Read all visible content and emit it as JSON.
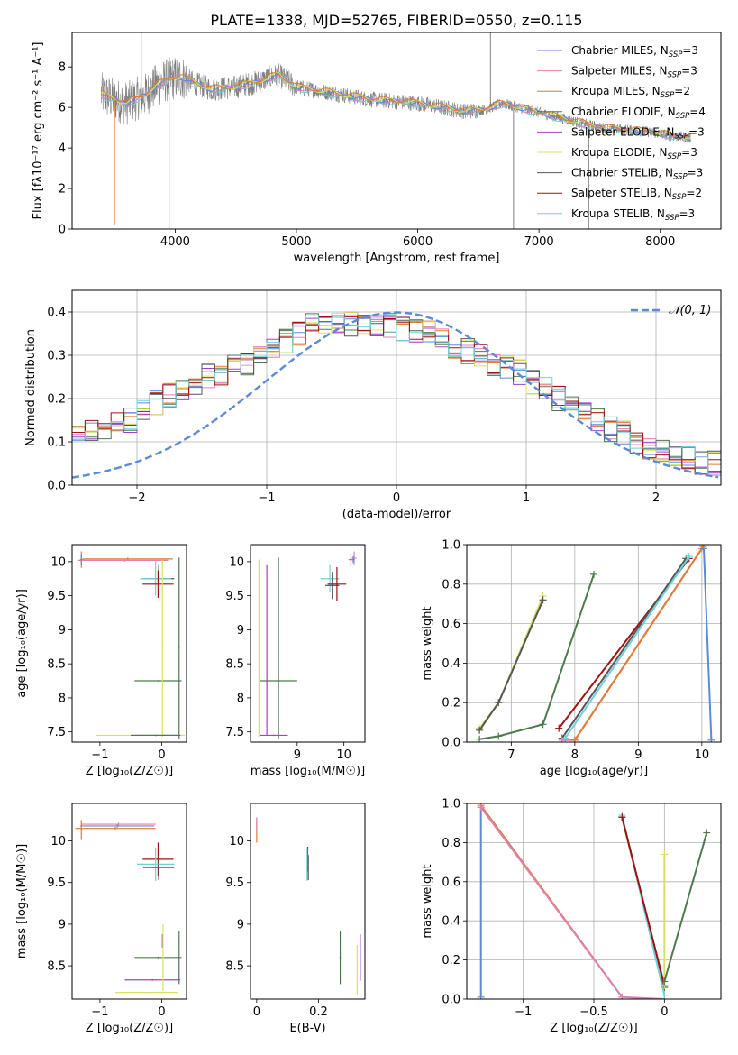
{
  "title": "PLATE=1338, MJD=52765, FIBERID=0550, z=0.115",
  "colors": {
    "ChabrierMILES": "#5b8bd8",
    "SalpeterMILES": "#e07fb5",
    "KroupaMILES": "#e07a35",
    "ChabrierELODIE": "#4d7a4d",
    "SalpeterELODIE": "#a040d0",
    "KroupaELODIE": "#d8e060",
    "ChabrierSTELIB": "#555555",
    "SalpeterSTELIB": "#a01010",
    "KroupaSTELIB": "#70d0e0",
    "data": "#808080",
    "normal": "#5b8bd8"
  },
  "legend1": [
    {
      "label": "Chabrier MILES, N",
      "sub": "SSP",
      "tail": "=3",
      "key": "ChabrierMILES"
    },
    {
      "label": "Salpeter MILES, N",
      "sub": "SSP",
      "tail": "=3",
      "key": "SalpeterMILES"
    },
    {
      "label": "Kroupa MILES, N",
      "sub": "SSP",
      "tail": "=2",
      "key": "KroupaMILES"
    },
    {
      "label": "Chabrier ELODIE, N",
      "sub": "SSP",
      "tail": "=4",
      "key": "ChabrierELODIE"
    },
    {
      "label": "Salpeter ELODIE, N",
      "sub": "SSP",
      "tail": "=3",
      "key": "SalpeterELODIE"
    },
    {
      "label": "Kroupa ELODIE, N",
      "sub": "SSP",
      "tail": "=3",
      "key": "KroupaELODIE"
    },
    {
      "label": "Chabrier STELIB, N",
      "sub": "SSP",
      "tail": "=3",
      "key": "ChabrierSTELIB"
    },
    {
      "label": "Salpeter STELIB, N",
      "sub": "SSP",
      "tail": "=2",
      "key": "SalpeterSTELIB"
    },
    {
      "label": "Kroupa STELIB, N",
      "sub": "SSP",
      "tail": "=3",
      "key": "KroupaSTELIB"
    }
  ],
  "legend2": {
    "label": "𝒩(0, 1)"
  },
  "chart_data": [
    {
      "id": "spectrum",
      "type": "line",
      "xlabel": "wavelength [Angstrom, rest frame]",
      "ylabel": "Flux [fλ10⁻¹⁷ erg cm⁻² s⁻¹ A⁻¹]",
      "xlim": [
        3150,
        8500
      ],
      "ylim": [
        0,
        9.7
      ],
      "xticks": [
        4000,
        5000,
        6000,
        7000,
        8000
      ],
      "yticks": [
        0,
        2,
        4,
        6,
        8
      ],
      "grid": false,
      "model_continuum": {
        "x": [
          3370,
          3450,
          3600,
          3750,
          3850,
          3950,
          4050,
          4150,
          4300,
          4500,
          4700,
          4850,
          5000,
          5200,
          5400,
          5600,
          5800,
          6000,
          6200,
          6400,
          6550,
          6700,
          6900,
          7100,
          7300,
          7500,
          7700,
          7900,
          8100,
          8250
        ],
        "y": [
          6.7,
          6.5,
          6.2,
          6.6,
          7.1,
          7.4,
          7.5,
          7.2,
          6.9,
          7.0,
          7.3,
          7.6,
          7.0,
          6.8,
          6.6,
          6.4,
          6.3,
          6.2,
          6.0,
          5.8,
          5.9,
          6.2,
          5.9,
          5.6,
          5.3,
          5.0,
          4.9,
          4.8,
          4.6,
          4.5
        ]
      }
    },
    {
      "id": "residual-hist",
      "type": "step",
      "xlabel": "(data-model)/error",
      "ylabel": "Normed distribution",
      "xlim": [
        -2.5,
        2.5
      ],
      "ylim": [
        0,
        0.45
      ],
      "xticks": [
        -2,
        -1,
        0,
        1,
        2
      ],
      "yticks": [
        0.0,
        0.1,
        0.2,
        0.3,
        0.4
      ],
      "grid": true,
      "bin_width": 0.1,
      "base_values": [
        0.035,
        0.03,
        0.035,
        0.04,
        0.06,
        0.06,
        0.08,
        0.09,
        0.1,
        0.1,
        0.11,
        0.12,
        0.13,
        0.15,
        0.15,
        0.17,
        0.19,
        0.21,
        0.22,
        0.23,
        0.25,
        0.26,
        0.27,
        0.28,
        0.3,
        0.32,
        0.33,
        0.35,
        0.37,
        0.36,
        0.38,
        0.37,
        0.38,
        0.37,
        0.37,
        0.36,
        0.36,
        0.35,
        0.34,
        0.32,
        0.31,
        0.3,
        0.28,
        0.27,
        0.26,
        0.24,
        0.22,
        0.2,
        0.19,
        0.17,
        0.15,
        0.13,
        0.12,
        0.1,
        0.09,
        0.08,
        0.07,
        0.06,
        0.05,
        0.05,
        0.04,
        0.04,
        0.03,
        0.03,
        0.025,
        0.025,
        0.025,
        0.02,
        0.02,
        0.02
      ]
    },
    {
      "id": "age-vs-Z",
      "type": "errorbar",
      "xlabel": "Z [log₁₀(Z/Z☉)]",
      "ylabel": "age  [log₁₀(age/yr)]",
      "xlim": [
        -1.45,
        0.4
      ],
      "ylim": [
        7.35,
        10.25
      ],
      "xticks": [
        -1,
        0
      ],
      "yticks": [
        7.5,
        8.0,
        8.5,
        9.0,
        9.5,
        10.0
      ],
      "points": [
        {
          "key": "KroupaMILES",
          "x": -1.3,
          "y": 10.03,
          "xerr": 0.02,
          "yerr": 0.12
        },
        {
          "key": "SalpeterMILES",
          "x": -1.3,
          "y": 10.02,
          "xerr": 0.05,
          "yerr": 0.05
        },
        {
          "key": "ChabrierMILES",
          "x": -1.3,
          "y": 10.03,
          "xerr": 0.02,
          "yerr": 0.08
        },
        {
          "key": "KroupaMILES",
          "x": -0.55,
          "y": 10.04,
          "xerr": 0.73,
          "yerr": 0.02
        },
        {
          "key": "SalpeterMILES",
          "x": -0.6,
          "y": 10.02,
          "xerr": 0.7,
          "yerr": 0.02
        },
        {
          "key": "ChabrierSTELIB",
          "x": -0.05,
          "y": 9.75,
          "xerr": 0.25,
          "yerr": 0.2
        },
        {
          "key": "KroupaSTELIB",
          "x": -0.1,
          "y": 9.75,
          "xerr": 0.25,
          "yerr": 0.25
        },
        {
          "key": "SalpeterSTELIB",
          "x": -0.06,
          "y": 9.67,
          "xerr": 0.25,
          "yerr": 0.2
        },
        {
          "key": "ChabrierELODIE",
          "x": 0.28,
          "y": 8.73,
          "xerr": 0.01,
          "yerr": 1.33
        },
        {
          "key": "ChabrierELODIE",
          "x": -0.06,
          "y": 8.25,
          "xerr": 0.38,
          "yerr": 0.01
        },
        {
          "key": "KroupaELODIE",
          "x": 0.01,
          "y": 8.73,
          "xerr": 0.01,
          "yerr": 1.3
        },
        {
          "key": "KroupaELODIE",
          "x": -0.35,
          "y": 7.45,
          "xerr": 0.72,
          "yerr": 0.01
        },
        {
          "key": "SalpeterELODIE",
          "x": -0.1,
          "y": 7.45,
          "xerr": 0.4,
          "yerr": 0.01
        },
        {
          "key": "ChabrierELODIE",
          "x": -0.1,
          "y": 7.45,
          "xerr": 0.4,
          "yerr": 0.01
        }
      ]
    },
    {
      "id": "age-vs-mass",
      "type": "errorbar",
      "xlabel": "mass [log₁₀(M/M☉)]",
      "ylabel": "",
      "xlim": [
        8.0,
        10.45
      ],
      "ylim": [
        7.35,
        10.25
      ],
      "xticks": [
        9,
        10
      ],
      "yticks": [
        7.5,
        8.0,
        8.5,
        9.0,
        9.5,
        10.0
      ],
      "points": [
        {
          "key": "SalpeterMILES",
          "x": 10.22,
          "y": 10.05,
          "xerr": 0.05,
          "yerr": 0.1
        },
        {
          "key": "KroupaMILES",
          "x": 10.15,
          "y": 10.03,
          "xerr": 0.05,
          "yerr": 0.1
        },
        {
          "key": "ChabrierMILES",
          "x": 10.2,
          "y": 10.03,
          "xerr": 0.03,
          "yerr": 0.05
        },
        {
          "key": "KroupaSTELIB",
          "x": 9.7,
          "y": 9.75,
          "xerr": 0.2,
          "yerr": 0.2
        },
        {
          "key": "ChabrierSTELIB",
          "x": 9.75,
          "y": 9.65,
          "xerr": 0.15,
          "yerr": 0.2
        },
        {
          "key": "SalpeterSTELIB",
          "x": 9.85,
          "y": 9.67,
          "xerr": 0.2,
          "yerr": 0.25
        },
        {
          "key": "ChabrierELODIE",
          "x": 8.6,
          "y": 8.73,
          "xerr": 0.01,
          "yerr": 1.33
        },
        {
          "key": "ChabrierELODIE",
          "x": 8.6,
          "y": 8.25,
          "xerr": 0.4,
          "yerr": 0.01
        },
        {
          "key": "SalpeterELODIE",
          "x": 8.35,
          "y": 8.7,
          "xerr": 0.01,
          "yerr": 1.25
        },
        {
          "key": "KroupaELODIE",
          "x": 8.18,
          "y": 8.73,
          "xerr": 0.01,
          "yerr": 1.3
        },
        {
          "key": "SalpeterELODIE",
          "x": 8.5,
          "y": 7.45,
          "xerr": 0.3,
          "yerr": 0.01
        }
      ]
    },
    {
      "id": "weight-vs-age",
      "type": "line",
      "xlabel": "age  [log₁₀(age/yr)]",
      "ylabel": "mass weight",
      "xlim": [
        6.3,
        10.3
      ],
      "ylim": [
        0.0,
        1.0
      ],
      "xticks": [
        7,
        8,
        9,
        10
      ],
      "yticks": [
        0.0,
        0.2,
        0.4,
        0.6,
        0.8,
        1.0
      ],
      "grid": true,
      "series": [
        {
          "key": "KroupaELODIE",
          "x": [
            6.5,
            6.8,
            7.5
          ],
          "y": [
            0.07,
            0.2,
            0.74
          ]
        },
        {
          "key": "ChabrierSTELIB",
          "x": [
            6.5,
            6.8,
            7.5
          ],
          "y": [
            0.06,
            0.2,
            0.72
          ]
        },
        {
          "key": "ChabrierELODIE",
          "x": [
            6.5,
            6.8,
            7.5,
            8.3
          ],
          "y": [
            0.015,
            0.03,
            0.09,
            0.85
          ]
        },
        {
          "key": "SalpeterSTELIB",
          "x": [
            7.75,
            9.8
          ],
          "y": [
            0.07,
            0.93
          ]
        },
        {
          "key": "ChabrierSTELIB",
          "x": [
            7.8,
            9.75
          ],
          "y": [
            0.02,
            0.93
          ]
        },
        {
          "key": "KroupaSTELIB",
          "x": [
            7.85,
            9.8
          ],
          "y": [
            0.02,
            0.94
          ]
        },
        {
          "key": "SalpeterMILES",
          "x": [
            7.8,
            8.0,
            10.0
          ],
          "y": [
            0.01,
            0.01,
            0.98
          ]
        },
        {
          "key": "KroupaMILES",
          "x": [
            8.0,
            10.02
          ],
          "y": [
            0.01,
            0.99
          ]
        },
        {
          "key": "ChabrierMILES",
          "x": [
            10.03,
            10.15
          ],
          "y": [
            0.98,
            0.01
          ]
        }
      ]
    },
    {
      "id": "mass-vs-Z",
      "type": "errorbar",
      "xlabel": "Z [log₁₀(Z/Z☉)]",
      "ylabel": "mass [log₁₀(M/M☉)]",
      "xlim": [
        -1.45,
        0.4
      ],
      "ylim": [
        8.1,
        10.45
      ],
      "xticks": [
        -1,
        0
      ],
      "yticks": [
        8.5,
        9.0,
        9.5,
        10.0
      ],
      "points": [
        {
          "key": "SalpeterMILES",
          "x": -0.7,
          "y": 10.2,
          "xerr": 0.6,
          "yerr": 0.02
        },
        {
          "key": "KroupaMILES",
          "x": -0.75,
          "y": 10.15,
          "xerr": 0.65,
          "yerr": 0.02
        },
        {
          "key": "KroupaMILES",
          "x": -1.3,
          "y": 10.13,
          "xerr": 0.02,
          "yerr": 0.12
        },
        {
          "key": "ChabrierMILES",
          "x": -0.72,
          "y": 10.18,
          "xerr": 0.6,
          "yerr": 0.02
        },
        {
          "key": "SalpeterSTELIB",
          "x": -0.06,
          "y": 9.78,
          "xerr": 0.25,
          "yerr": 0.2
        },
        {
          "key": "KroupaSTELIB",
          "x": -0.1,
          "y": 9.72,
          "xerr": 0.3,
          "yerr": 0.2
        },
        {
          "key": "ChabrierSTELIB",
          "x": -0.05,
          "y": 9.68,
          "xerr": 0.25,
          "yerr": 0.15
        },
        {
          "key": "ChabrierELODIE",
          "x": 0.28,
          "y": 8.6,
          "xerr": 0.01,
          "yerr": 0.32
        },
        {
          "key": "ChabrierELODIE",
          "x": -0.06,
          "y": 8.6,
          "xerr": 0.38,
          "yerr": 0.01
        },
        {
          "key": "SalpeterELODIE",
          "x": 0.01,
          "y": 8.8,
          "xerr": 0.01,
          "yerr": 0.08
        },
        {
          "key": "SalpeterELODIE",
          "x": -0.15,
          "y": 8.33,
          "xerr": 0.45,
          "yerr": 0.01
        },
        {
          "key": "KroupaELODIE",
          "x": -0.25,
          "y": 8.18,
          "xerr": 0.5,
          "yerr": 0.01
        },
        {
          "key": "KroupaELODIE",
          "x": 0.02,
          "y": 8.6,
          "xerr": 0.01,
          "yerr": 0.4
        }
      ]
    },
    {
      "id": "mass-vs-EBV",
      "type": "errorbar",
      "xlabel": "E(B-V)",
      "ylabel": "",
      "xlim": [
        -0.02,
        0.35
      ],
      "ylim": [
        8.1,
        10.45
      ],
      "xticks": [
        0.0,
        0.2
      ],
      "yticks": [
        8.5,
        9.0,
        9.5,
        10.0
      ],
      "points": [
        {
          "key": "KroupaMILES",
          "x": 0.0,
          "y": 10.13,
          "xerr": 0.001,
          "yerr": 0.15
        },
        {
          "key": "SalpeterMILES",
          "x": 0.0,
          "y": 10.2,
          "xerr": 0.001,
          "yerr": 0.08
        },
        {
          "key": "SalpeterSTELIB",
          "x": 0.165,
          "y": 9.78,
          "xerr": 0.002,
          "yerr": 0.15
        },
        {
          "key": "KroupaSTELIB",
          "x": 0.163,
          "y": 9.72,
          "xerr": 0.002,
          "yerr": 0.2
        },
        {
          "key": "ChabrierSTELIB",
          "x": 0.167,
          "y": 9.68,
          "xerr": 0.002,
          "yerr": 0.15
        },
        {
          "key": "ChabrierELODIE",
          "x": 0.27,
          "y": 8.6,
          "xerr": 0.002,
          "yerr": 0.32
        },
        {
          "key": "SalpeterELODIE",
          "x": 0.335,
          "y": 8.6,
          "xerr": 0.002,
          "yerr": 0.28
        },
        {
          "key": "KroupaELODIE",
          "x": 0.325,
          "y": 8.45,
          "xerr": 0.002,
          "yerr": 0.3
        }
      ]
    },
    {
      "id": "weight-vs-Z",
      "type": "line",
      "xlabel": "Z [log₁₀(Z/Z☉)]",
      "ylabel": "mass weight",
      "xlim": [
        -1.4,
        0.4
      ],
      "ylim": [
        0.0,
        1.0
      ],
      "xticks": [
        -1.0,
        -0.5,
        0.0
      ],
      "yticks": [
        0.0,
        0.2,
        0.4,
        0.6,
        0.8,
        1.0
      ],
      "grid": true,
      "series": [
        {
          "key": "ChabrierMILES",
          "x": [
            -1.3,
            -1.3
          ],
          "y": [
            0.98,
            0.01
          ]
        },
        {
          "key": "KroupaMILES",
          "x": [
            -1.3,
            -0.3
          ],
          "y": [
            0.99,
            0.01
          ]
        },
        {
          "key": "SalpeterMILES",
          "x": [
            -1.3,
            -0.3,
            0.0
          ],
          "y": [
            0.98,
            0.01,
            0.0
          ]
        },
        {
          "key": "ChabrierSTELIB",
          "x": [
            -0.3,
            0.0
          ],
          "y": [
            0.93,
            0.06
          ]
        },
        {
          "key": "KroupaSTELIB",
          "x": [
            -0.3,
            0.0
          ],
          "y": [
            0.94,
            0.02
          ]
        },
        {
          "key": "SalpeterSTELIB",
          "x": [
            -0.3,
            0.0
          ],
          "y": [
            0.93,
            0.07
          ]
        },
        {
          "key": "KroupaELODIE",
          "x": [
            0.0,
            0.0,
            0.0
          ],
          "y": [
            0.74,
            0.2,
            0.07
          ]
        },
        {
          "key": "ChabrierELODIE",
          "x": [
            0.0,
            0.3
          ],
          "y": [
            0.09,
            0.85
          ]
        }
      ]
    }
  ]
}
